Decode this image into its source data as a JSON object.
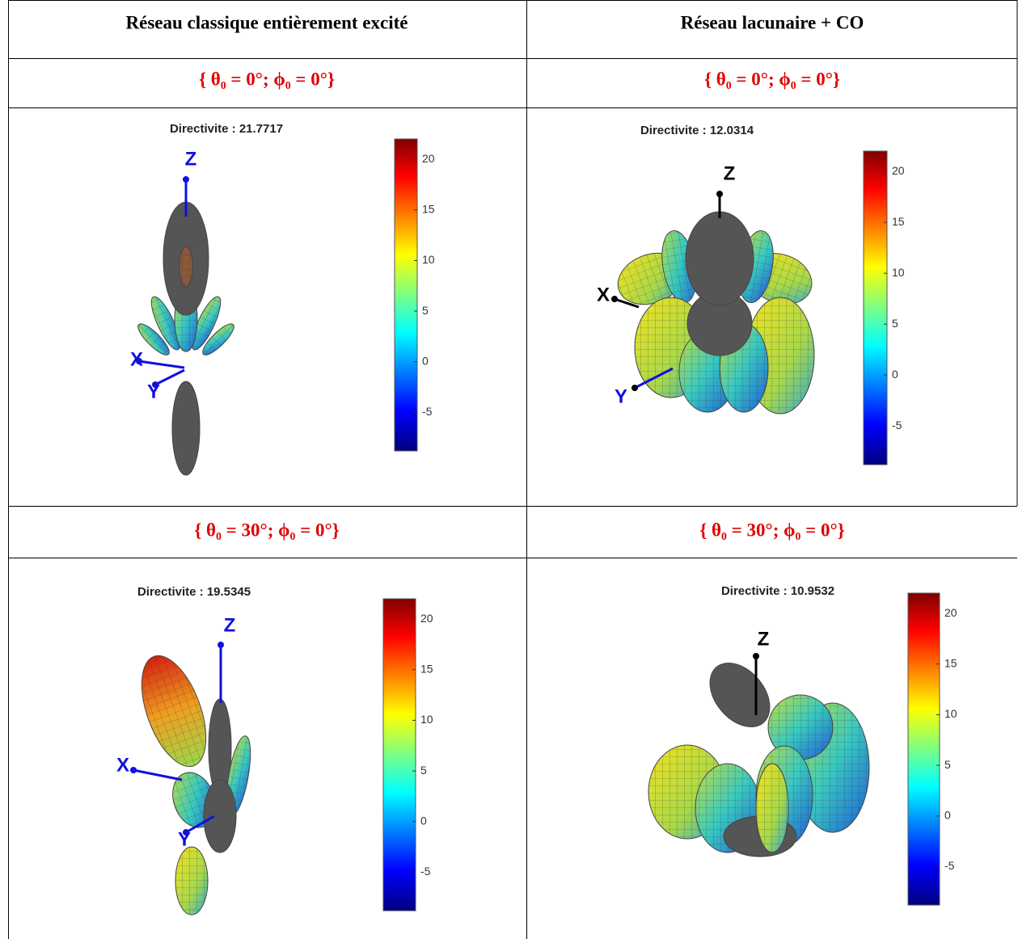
{
  "table": {
    "headers": [
      "Réseau classique entièrement excité",
      "Réseau lacunaire + CO"
    ],
    "rows": [
      {
        "conditions": [
          "{ θ₀ = 0°; ϕ₀ = 0°}",
          "{ θ₀ = 0°; ϕ₀ = 0°}"
        ],
        "plots": [
          {
            "title": "Directivite : 21.7717",
            "axes": [
              "Z",
              "X",
              "Y"
            ],
            "colorbar": {
              "clim": [
                -8.8,
                22
              ],
              "ticks": [
                20,
                15,
                10,
                5,
                0,
                -5
              ]
            }
          },
          {
            "title": "Directivite : 12.0314",
            "axes": [
              "Z",
              "X",
              "Y"
            ],
            "colorbar": {
              "clim": [
                -8.8,
                22
              ],
              "ticks": [
                20,
                15,
                10,
                5,
                0,
                -5
              ]
            }
          }
        ]
      },
      {
        "conditions": [
          "{ θ₀ = 30°; ϕ₀ = 0°}",
          "{ θ₀ = 30°; ϕ₀ = 0°}"
        ],
        "plots": [
          {
            "title": "Directivite : 19.5345",
            "axes": [
              "Z",
              "X",
              "Y"
            ],
            "colorbar": {
              "clim": [
                -8.8,
                22
              ],
              "ticks": [
                20,
                15,
                10,
                5,
                0,
                -5
              ]
            }
          },
          {
            "title": "Directivite : 10.9532",
            "axes": [
              "Z"
            ],
            "colorbar": {
              "clim": [
                -8.8,
                22
              ],
              "ticks": [
                20,
                15,
                10,
                5,
                0,
                -5
              ]
            }
          }
        ]
      }
    ]
  }
}
